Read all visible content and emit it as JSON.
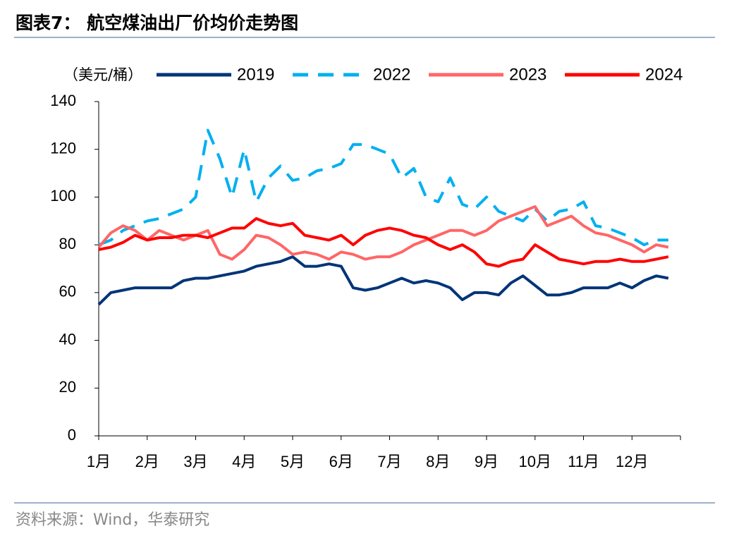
{
  "chart_data": {
    "type": "line",
    "title": "图表7：  航空煤油出厂价均价走势图",
    "y_label": "（美元/桶）",
    "source": "资料来源：Wind，华泰研究",
    "categories": [
      "1月",
      null,
      null,
      null,
      "2月",
      null,
      null,
      null,
      "3月",
      null,
      null,
      null,
      "4月",
      null,
      null,
      null,
      "5月",
      null,
      null,
      null,
      "6月",
      null,
      null,
      null,
      "7月",
      null,
      null,
      null,
      "8月",
      null,
      null,
      null,
      "9月",
      null,
      null,
      null,
      "10月",
      null,
      null,
      null,
      "11月",
      null,
      null,
      null,
      "12月",
      null,
      null,
      null
    ],
    "ylim": [
      0,
      140
    ],
    "yticks": [
      0,
      20,
      40,
      60,
      80,
      100,
      120,
      140
    ],
    "series": [
      {
        "name": "2019",
        "color": "#003478",
        "dash": false,
        "values": [
          55,
          60,
          61,
          62,
          62,
          62,
          62,
          65,
          66,
          66,
          67,
          68,
          69,
          71,
          72,
          73,
          75,
          71,
          71,
          72,
          71,
          62,
          61,
          62,
          64,
          66,
          64,
          65,
          64,
          62,
          57,
          60,
          60,
          59,
          64,
          67,
          63,
          59,
          59,
          60,
          62,
          62,
          62,
          64,
          62,
          65,
          67,
          66
        ]
      },
      {
        "name": "2022",
        "color": "#00b0f0",
        "dash": true,
        "values": [
          80,
          82,
          86,
          88,
          90,
          91,
          93,
          95,
          100,
          128,
          116,
          100,
          120,
          98,
          108,
          113,
          107,
          108,
          111,
          112,
          114,
          122,
          122,
          120,
          118,
          108,
          112,
          100,
          98,
          108,
          97,
          95,
          100,
          94,
          92,
          90,
          95,
          90,
          94,
          95,
          98,
          88,
          87,
          85,
          83,
          80,
          82,
          82
        ]
      },
      {
        "name": "2023",
        "color": "#ff6666",
        "dash": false,
        "values": [
          79,
          85,
          88,
          86,
          82,
          86,
          84,
          82,
          84,
          86,
          76,
          74,
          78,
          84,
          83,
          80,
          76,
          77,
          76,
          74,
          77,
          76,
          74,
          75,
          75,
          77,
          80,
          82,
          84,
          86,
          86,
          84,
          86,
          90,
          92,
          94,
          96,
          88,
          90,
          92,
          88,
          85,
          84,
          82,
          80,
          77,
          80,
          79
        ]
      },
      {
        "name": "2024",
        "color": "#ff0000",
        "dash": false,
        "values": [
          78,
          79,
          81,
          84,
          82,
          83,
          83,
          84,
          84,
          83,
          85,
          87,
          87,
          91,
          89,
          88,
          89,
          84,
          83,
          82,
          84,
          80,
          84,
          86,
          87,
          86,
          84,
          83,
          80,
          78,
          80,
          77,
          72,
          71,
          73,
          74,
          80,
          77,
          74,
          73,
          72,
          73,
          73,
          74,
          73,
          73,
          74,
          75
        ]
      }
    ]
  }
}
